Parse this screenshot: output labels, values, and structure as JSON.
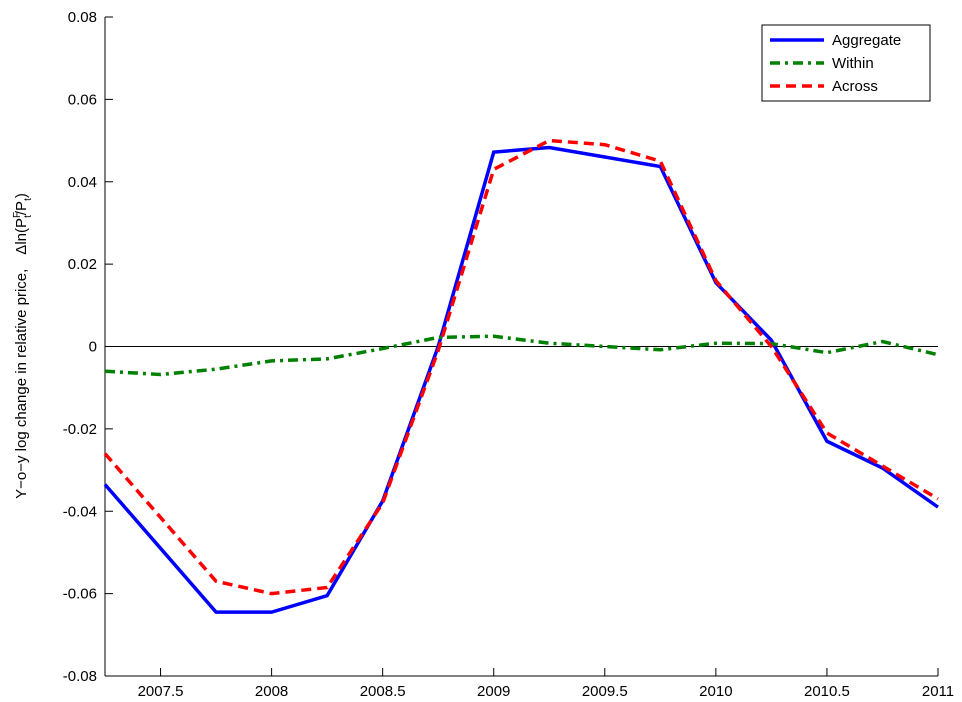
{
  "chart_data": {
    "type": "line",
    "ylabel": "Y−o−y log change in relative price,",
    "ylabel_formula": [
      "Δln(P",
      "F",
      "t",
      "/P",
      "t",
      ")"
    ],
    "x": [
      2007.25,
      2007.5,
      2007.75,
      2008,
      2008.25,
      2008.5,
      2008.75,
      2009,
      2009.25,
      2009.5,
      2009.75,
      2010,
      2010.25,
      2010.5,
      2010.75,
      2011
    ],
    "series": [
      {
        "name": "Aggregate",
        "color": "#0000ff",
        "style": "solid",
        "values": [
          -0.0335,
          -0.049,
          -0.0645,
          -0.0645,
          -0.0605,
          -0.0375,
          0.0,
          0.0472,
          0.0483,
          0.046,
          0.0437,
          0.0155,
          0.0015,
          -0.023,
          -0.0295,
          -0.039
        ]
      },
      {
        "name": "Within",
        "color": "#008000",
        "style": "dashdot",
        "values": [
          -0.006,
          -0.0068,
          -0.0055,
          -0.0035,
          -0.003,
          -0.0005,
          0.0022,
          0.0025,
          0.0008,
          0.0,
          -0.0008,
          0.0008,
          0.0007,
          -0.0015,
          0.0012,
          -0.002
        ]
      },
      {
        "name": "Across",
        "color": "#ff0000",
        "style": "dashed",
        "values": [
          -0.026,
          -0.0415,
          -0.057,
          -0.06,
          -0.0585,
          -0.038,
          -0.001,
          0.043,
          0.05,
          0.049,
          0.045,
          0.016,
          0.0,
          -0.021,
          -0.029,
          -0.037
        ]
      }
    ],
    "xlim": [
      2007.25,
      2011
    ],
    "xticks": [
      2007.5,
      2008,
      2008.5,
      2009,
      2009.5,
      2010,
      2010.5,
      2011
    ],
    "ylim": [
      -0.08,
      0.08
    ],
    "yticks": [
      -0.08,
      -0.06,
      -0.04,
      -0.02,
      0,
      0.02,
      0.04,
      0.06,
      0.08
    ],
    "zero_line": true,
    "legend": "northeast"
  }
}
